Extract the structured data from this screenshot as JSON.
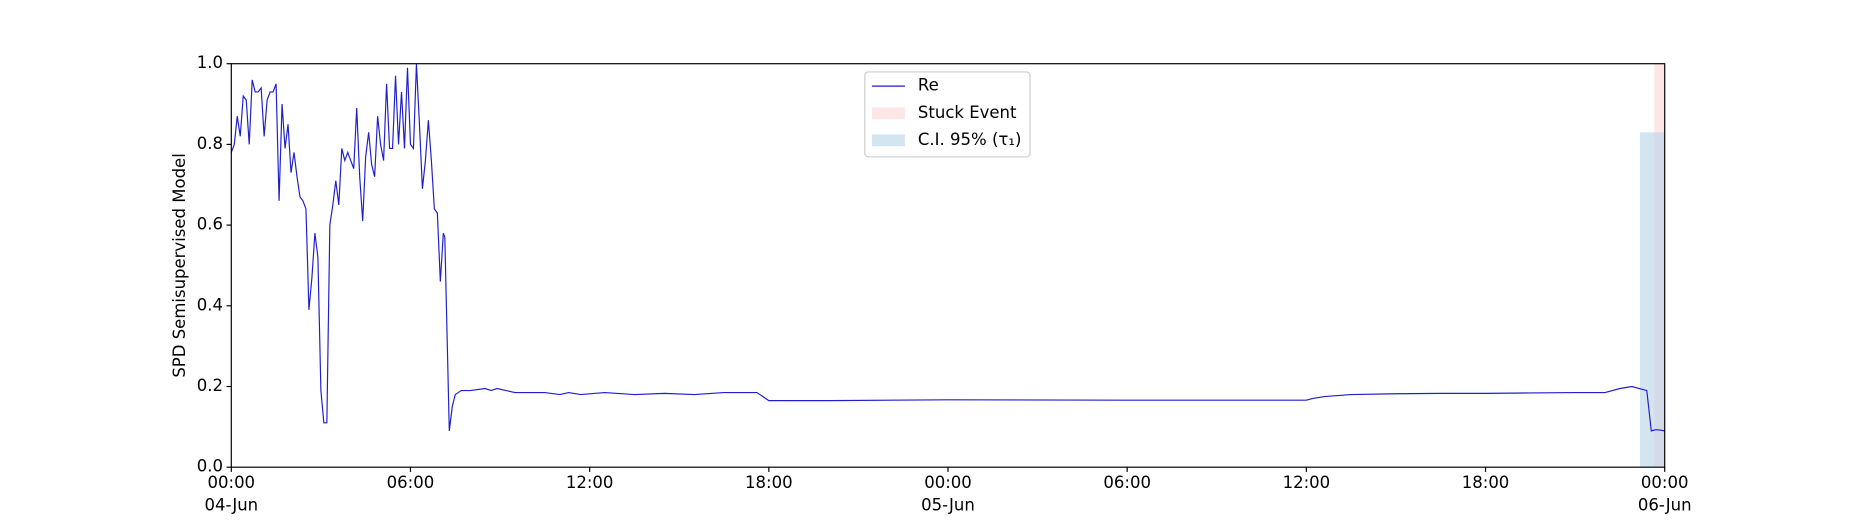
{
  "chart_data": {
    "type": "line",
    "ylabel": "SPD Semisupervised Model",
    "x": [
      0,
      0.1,
      0.2,
      0.3,
      0.4,
      0.5,
      0.6,
      0.7,
      0.8,
      0.9,
      1.0,
      1.1,
      1.2,
      1.3,
      1.4,
      1.5,
      1.6,
      1.7,
      1.8,
      1.9,
      2.0,
      2.1,
      2.2,
      2.3,
      2.4,
      2.5,
      2.6,
      2.7,
      2.8,
      2.9,
      3.0,
      3.1,
      3.2,
      3.3,
      3.4,
      3.5,
      3.6,
      3.7,
      3.8,
      3.9,
      4.0,
      4.1,
      4.2,
      4.3,
      4.4,
      4.5,
      4.6,
      4.7,
      4.8,
      4.9,
      5.0,
      5.1,
      5.2,
      5.3,
      5.4,
      5.5,
      5.6,
      5.7,
      5.8,
      5.9,
      6.0,
      6.1,
      6.2,
      6.3,
      6.4,
      6.5,
      6.6,
      6.7,
      6.8,
      6.9,
      7.0,
      7.1,
      7.15,
      7.3,
      7.4,
      7.5,
      7.7,
      8.0,
      8.5,
      8.7,
      8.9,
      9.5,
      10.5,
      11.0,
      11.3,
      11.7,
      12.5,
      13.5,
      14.5,
      15.5,
      16.5,
      17.6,
      18.0,
      20.0,
      24.0,
      30.0,
      36.0,
      36.2,
      36.6,
      37.5,
      39.0,
      40.5,
      42.0,
      43.5,
      45.0,
      46.0,
      46.5,
      46.9,
      47.4,
      47.55,
      47.7,
      47.85,
      48.0
    ],
    "series": [
      {
        "name": "Re",
        "color": "#1f1fcc",
        "values": [
          0.78,
          0.8,
          0.87,
          0.82,
          0.92,
          0.91,
          0.8,
          0.96,
          0.93,
          0.93,
          0.94,
          0.82,
          0.91,
          0.93,
          0.93,
          0.95,
          0.66,
          0.9,
          0.79,
          0.85,
          0.73,
          0.78,
          0.72,
          0.67,
          0.66,
          0.64,
          0.39,
          0.47,
          0.58,
          0.52,
          0.19,
          0.11,
          0.11,
          0.6,
          0.65,
          0.71,
          0.65,
          0.79,
          0.76,
          0.78,
          0.76,
          0.74,
          0.89,
          0.72,
          0.61,
          0.77,
          0.83,
          0.75,
          0.72,
          0.87,
          0.8,
          0.76,
          0.95,
          0.79,
          0.79,
          0.97,
          0.8,
          0.93,
          0.79,
          0.99,
          0.8,
          0.79,
          1.0,
          0.85,
          0.69,
          0.76,
          0.86,
          0.76,
          0.64,
          0.63,
          0.46,
          0.58,
          0.57,
          0.09,
          0.15,
          0.18,
          0.19,
          0.19,
          0.195,
          0.19,
          0.195,
          0.185,
          0.185,
          0.18,
          0.185,
          0.18,
          0.185,
          0.18,
          0.183,
          0.18,
          0.185,
          0.185,
          0.165,
          0.165,
          0.167,
          0.166,
          0.166,
          0.17,
          0.175,
          0.18,
          0.182,
          0.183,
          0.183,
          0.184,
          0.185,
          0.185,
          0.195,
          0.2,
          0.19,
          0.09,
          0.093,
          0.092,
          0.09
        ]
      }
    ],
    "spans": [
      {
        "name": "Stuck Event",
        "start": 47.65,
        "end": 48,
        "top": 1.0,
        "color": "#ffd6d6"
      },
      {
        "name": "C.I. 95% (τ₁)",
        "start": 47.17,
        "end": 48,
        "top": 0.83,
        "color": "#b7d3ea"
      }
    ],
    "xlim": [
      0,
      48
    ],
    "ylim": [
      0,
      1
    ],
    "xticks": [
      {
        "value": 0,
        "label": "00:00"
      },
      {
        "value": 6,
        "label": "06:00"
      },
      {
        "value": 12,
        "label": "12:00"
      },
      {
        "value": 18,
        "label": "18:00"
      },
      {
        "value": 24,
        "label": "00:00"
      },
      {
        "value": 30,
        "label": "06:00"
      },
      {
        "value": 36,
        "label": "12:00"
      },
      {
        "value": 42,
        "label": "18:00"
      },
      {
        "value": 48,
        "label": "00:00"
      }
    ],
    "date_labels": [
      {
        "value": 0,
        "label": "04-Jun"
      },
      {
        "value": 24,
        "label": "05-Jun"
      },
      {
        "value": 48,
        "label": "06-Jun"
      }
    ],
    "yticks": [
      {
        "value": 0,
        "label": "0.0"
      },
      0.2,
      0.4,
      0.6,
      0.8,
      {
        "value": 1,
        "label": "1.0"
      }
    ],
    "legend": "upper center"
  }
}
